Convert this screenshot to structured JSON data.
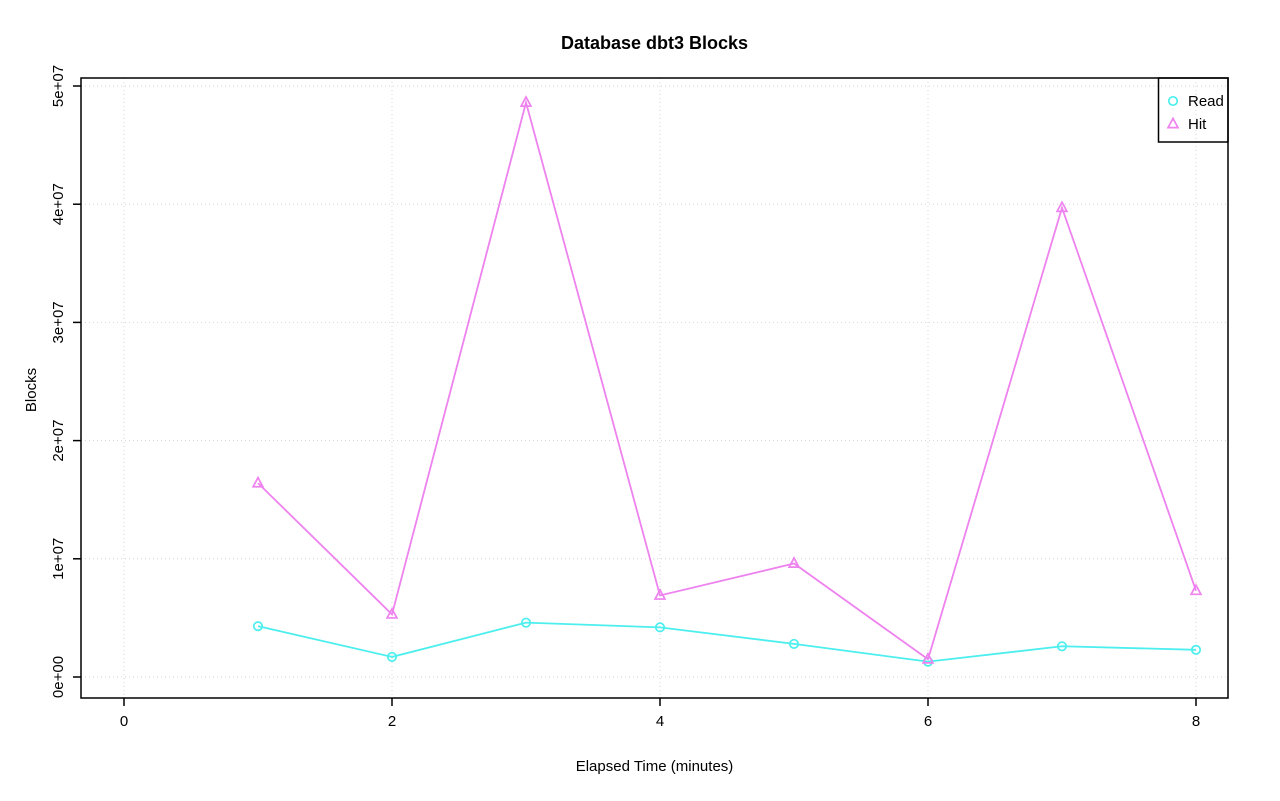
{
  "chart_data": {
    "type": "line",
    "title": "Database dbt3 Blocks",
    "xlabel": "Elapsed Time (minutes)",
    "ylabel": "Blocks",
    "x": [
      1,
      2,
      3,
      4,
      5,
      6,
      7,
      8
    ],
    "series": [
      {
        "name": "Read",
        "marker": "circle",
        "color": "#4deeee",
        "values": [
          4300000,
          1700000,
          4600000,
          4200000,
          2800000,
          1300000,
          2600000,
          2300000
        ]
      },
      {
        "name": "Hit",
        "marker": "triangle",
        "color": "#ee82ee",
        "values": [
          16400000,
          5300000,
          48600000,
          6900000,
          9600000,
          1500000,
          39700000,
          7300000
        ]
      }
    ],
    "x_ticks": {
      "values": [
        0,
        2,
        4,
        6,
        8
      ],
      "labels": [
        "0",
        "2",
        "4",
        "6",
        "8"
      ]
    },
    "y_ticks": {
      "values": [
        0,
        10000000,
        20000000,
        30000000,
        40000000,
        50000000
      ],
      "labels": [
        "0e+00",
        "1e+07",
        "2e+07",
        "3e+07",
        "4e+07",
        "5e+07"
      ]
    },
    "xlim": [
      0,
      8
    ],
    "ylim": [
      0,
      50000000
    ],
    "grid": "dotted",
    "legend": {
      "position": "topright",
      "entries": [
        "Read",
        "Hit"
      ]
    },
    "colors": {
      "grid": "#d6d6d6",
      "axis": "#000000",
      "background": "#ffffff"
    }
  }
}
